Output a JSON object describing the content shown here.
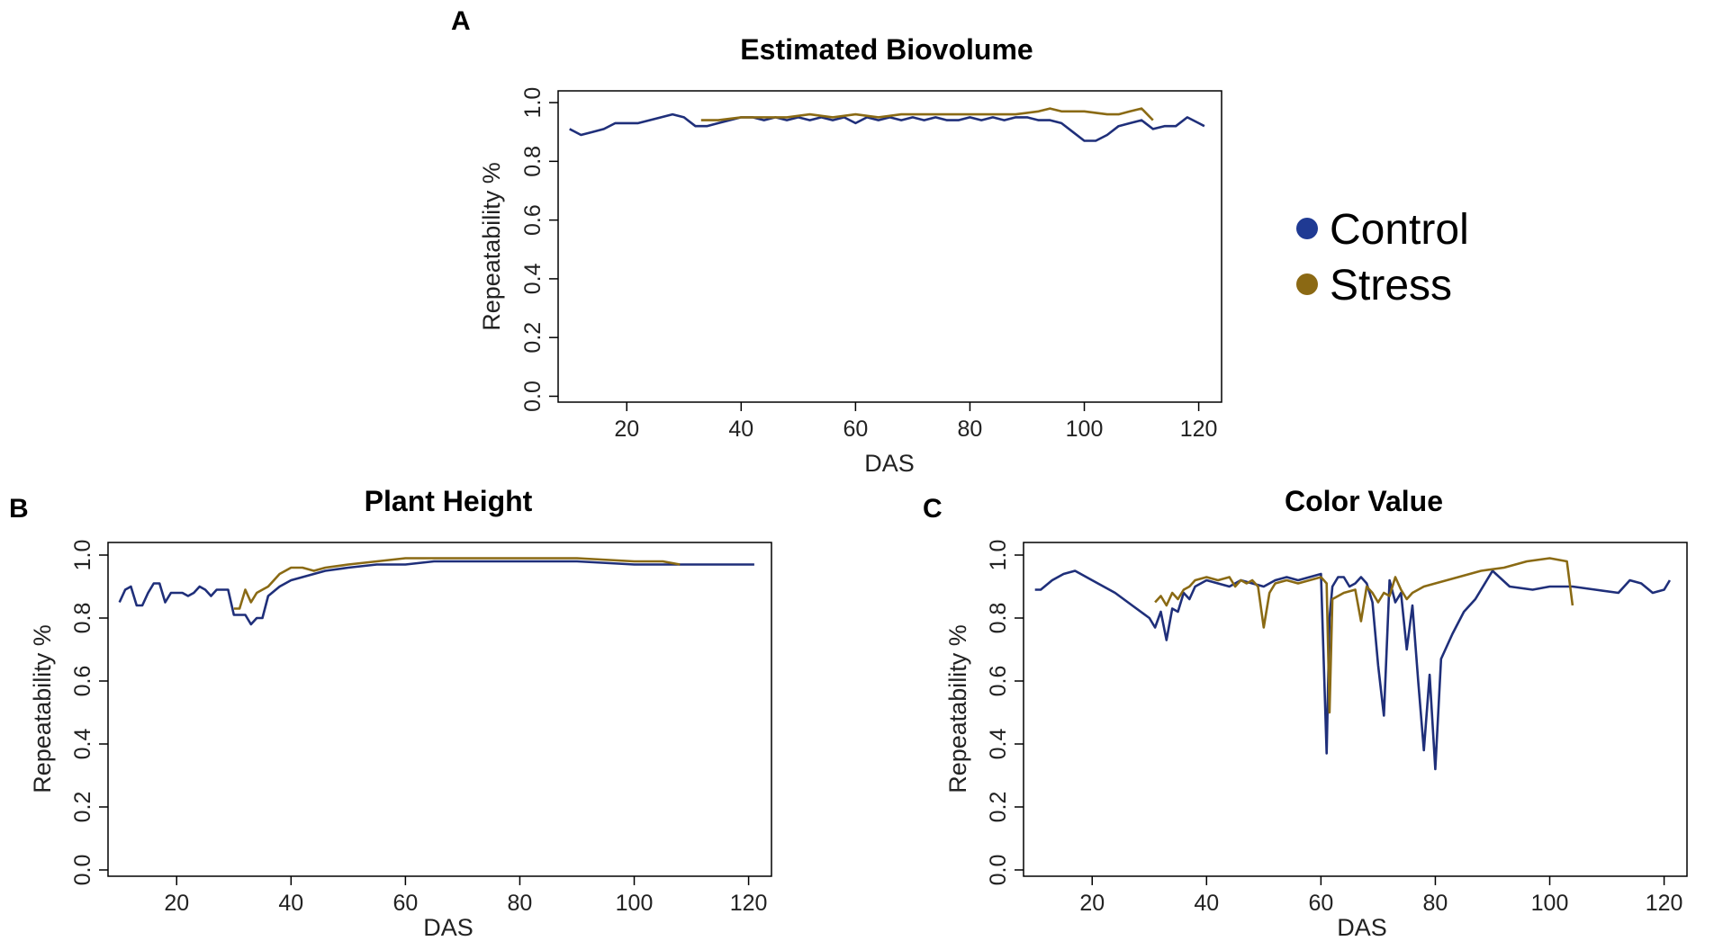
{
  "colors": {
    "control": "#1f2f7a",
    "stress": "#8a6a14"
  },
  "legend": {
    "items": [
      {
        "label": "Control",
        "color": "#1f3a93"
      },
      {
        "label": "Stress",
        "color": "#8b6914"
      }
    ]
  },
  "chart_data": [
    {
      "panel": "A",
      "type": "line",
      "title": "Estimated Biovolume",
      "xlabel": "DAS",
      "ylabel": "Repeatability %",
      "xlim": [
        8,
        124
      ],
      "ylim": [
        -0.02,
        1.04
      ],
      "xticks": [
        20,
        40,
        60,
        80,
        100,
        120
      ],
      "yticks": [
        "0.0",
        "0.2",
        "0.4",
        "0.6",
        "0.8",
        "1.0"
      ],
      "series": [
        {
          "name": "Control",
          "x": [
            10,
            12,
            14,
            16,
            18,
            20,
            22,
            24,
            26,
            28,
            30,
            32,
            34,
            36,
            38,
            40,
            42,
            44,
            46,
            48,
            50,
            52,
            54,
            56,
            58,
            60,
            62,
            64,
            66,
            68,
            70,
            72,
            74,
            76,
            78,
            80,
            82,
            84,
            86,
            88,
            90,
            92,
            94,
            96,
            98,
            100,
            102,
            104,
            106,
            108,
            110,
            112,
            114,
            116,
            118,
            120,
            121
          ],
          "y": [
            0.91,
            0.89,
            0.9,
            0.91,
            0.93,
            0.93,
            0.93,
            0.94,
            0.95,
            0.96,
            0.95,
            0.92,
            0.92,
            0.93,
            0.94,
            0.95,
            0.95,
            0.94,
            0.95,
            0.94,
            0.95,
            0.94,
            0.95,
            0.94,
            0.95,
            0.93,
            0.95,
            0.94,
            0.95,
            0.94,
            0.95,
            0.94,
            0.95,
            0.94,
            0.94,
            0.95,
            0.94,
            0.95,
            0.94,
            0.95,
            0.95,
            0.94,
            0.94,
            0.93,
            0.9,
            0.87,
            0.87,
            0.89,
            0.92,
            0.93,
            0.94,
            0.91,
            0.92,
            0.92,
            0.95,
            0.93,
            0.92
          ]
        },
        {
          "name": "Stress",
          "x": [
            33,
            36,
            40,
            44,
            48,
            52,
            56,
            60,
            64,
            68,
            72,
            76,
            80,
            84,
            88,
            92,
            94,
            96,
            100,
            104,
            106,
            108,
            110,
            112
          ],
          "y": [
            0.94,
            0.94,
            0.95,
            0.95,
            0.95,
            0.96,
            0.95,
            0.96,
            0.95,
            0.96,
            0.96,
            0.96,
            0.96,
            0.96,
            0.96,
            0.97,
            0.98,
            0.97,
            0.97,
            0.96,
            0.96,
            0.97,
            0.98,
            0.94
          ]
        }
      ]
    },
    {
      "panel": "B",
      "type": "line",
      "title": "Plant Height",
      "xlabel": "DAS",
      "ylabel": "Repeatability %",
      "xlim": [
        8,
        124
      ],
      "ylim": [
        -0.02,
        1.04
      ],
      "xticks": [
        20,
        40,
        60,
        80,
        100,
        120
      ],
      "yticks": [
        "0.0",
        "0.2",
        "0.4",
        "0.6",
        "0.8",
        "1.0"
      ],
      "series": [
        {
          "name": "Control",
          "x": [
            10,
            11,
            12,
            13,
            14,
            15,
            16,
            17,
            18,
            19,
            20,
            21,
            22,
            23,
            24,
            25,
            26,
            27,
            28,
            29,
            30,
            31,
            32,
            33,
            34,
            35,
            36,
            38,
            40,
            42,
            44,
            46,
            50,
            55,
            60,
            65,
            70,
            80,
            90,
            100,
            110,
            115,
            120,
            121
          ],
          "y": [
            0.85,
            0.89,
            0.9,
            0.84,
            0.84,
            0.88,
            0.91,
            0.91,
            0.85,
            0.88,
            0.88,
            0.88,
            0.87,
            0.88,
            0.9,
            0.89,
            0.87,
            0.89,
            0.89,
            0.89,
            0.81,
            0.81,
            0.81,
            0.78,
            0.8,
            0.8,
            0.87,
            0.9,
            0.92,
            0.93,
            0.94,
            0.95,
            0.96,
            0.97,
            0.97,
            0.98,
            0.98,
            0.98,
            0.98,
            0.97,
            0.97,
            0.97,
            0.97,
            0.97
          ]
        },
        {
          "name": "Stress",
          "x": [
            30,
            31,
            32,
            33,
            34,
            35,
            36,
            38,
            40,
            42,
            44,
            46,
            50,
            55,
            60,
            70,
            80,
            90,
            100,
            105,
            108
          ],
          "y": [
            0.83,
            0.83,
            0.89,
            0.85,
            0.88,
            0.89,
            0.9,
            0.94,
            0.96,
            0.96,
            0.95,
            0.96,
            0.97,
            0.98,
            0.99,
            0.99,
            0.99,
            0.99,
            0.98,
            0.98,
            0.97
          ]
        }
      ]
    },
    {
      "panel": "C",
      "type": "line",
      "title": "Color Value",
      "xlabel": "DAS",
      "ylabel": "Repeatability %",
      "xlim": [
        8,
        124
      ],
      "ylim": [
        -0.02,
        1.04
      ],
      "xticks": [
        20,
        40,
        60,
        80,
        100,
        120
      ],
      "yticks": [
        "0.0",
        "0.2",
        "0.4",
        "0.6",
        "0.8",
        "1.0"
      ],
      "series": [
        {
          "name": "Control",
          "x": [
            10,
            11,
            13,
            15,
            17,
            20,
            24,
            27,
            30,
            31,
            32,
            33,
            34,
            35,
            36,
            37,
            38,
            40,
            42,
            44,
            46,
            48,
            50,
            52,
            54,
            56,
            58,
            60,
            61,
            61.5,
            62,
            63,
            64,
            65,
            66,
            67,
            68,
            69,
            70,
            71,
            72,
            73,
            74,
            75,
            76,
            77,
            78,
            79,
            80,
            81,
            83,
            85,
            87,
            90,
            93,
            97,
            100,
            104,
            108,
            112,
            114,
            116,
            118,
            120,
            121
          ],
          "y": [
            0.89,
            0.89,
            0.92,
            0.94,
            0.95,
            0.92,
            0.88,
            0.84,
            0.8,
            0.77,
            0.82,
            0.73,
            0.83,
            0.82,
            0.88,
            0.86,
            0.9,
            0.92,
            0.91,
            0.9,
            0.92,
            0.91,
            0.9,
            0.92,
            0.93,
            0.92,
            0.93,
            0.94,
            0.37,
            0.8,
            0.9,
            0.93,
            0.93,
            0.9,
            0.91,
            0.93,
            0.91,
            0.85,
            0.65,
            0.49,
            0.92,
            0.85,
            0.88,
            0.7,
            0.84,
            0.6,
            0.38,
            0.62,
            0.32,
            0.67,
            0.75,
            0.82,
            0.86,
            0.95,
            0.9,
            0.89,
            0.9,
            0.9,
            0.89,
            0.88,
            0.92,
            0.91,
            0.88,
            0.89,
            0.92
          ]
        },
        {
          "name": "Stress",
          "x": [
            31,
            32,
            33,
            34,
            35,
            36,
            37,
            38,
            40,
            42,
            44,
            45,
            46,
            47,
            48,
            49,
            50,
            51,
            52,
            54,
            56,
            58,
            60,
            61,
            61.5,
            62,
            64,
            66,
            67,
            68,
            69,
            70,
            71,
            72,
            73,
            74,
            75,
            76,
            78,
            80,
            84,
            88,
            92,
            96,
            100,
            103,
            104
          ],
          "y": [
            0.85,
            0.87,
            0.84,
            0.88,
            0.86,
            0.89,
            0.9,
            0.92,
            0.93,
            0.92,
            0.93,
            0.9,
            0.92,
            0.91,
            0.92,
            0.9,
            0.77,
            0.88,
            0.91,
            0.92,
            0.91,
            0.92,
            0.93,
            0.91,
            0.5,
            0.86,
            0.88,
            0.89,
            0.79,
            0.9,
            0.88,
            0.85,
            0.88,
            0.87,
            0.93,
            0.89,
            0.86,
            0.88,
            0.9,
            0.91,
            0.93,
            0.95,
            0.96,
            0.98,
            0.99,
            0.98,
            0.84
          ]
        }
      ]
    }
  ]
}
